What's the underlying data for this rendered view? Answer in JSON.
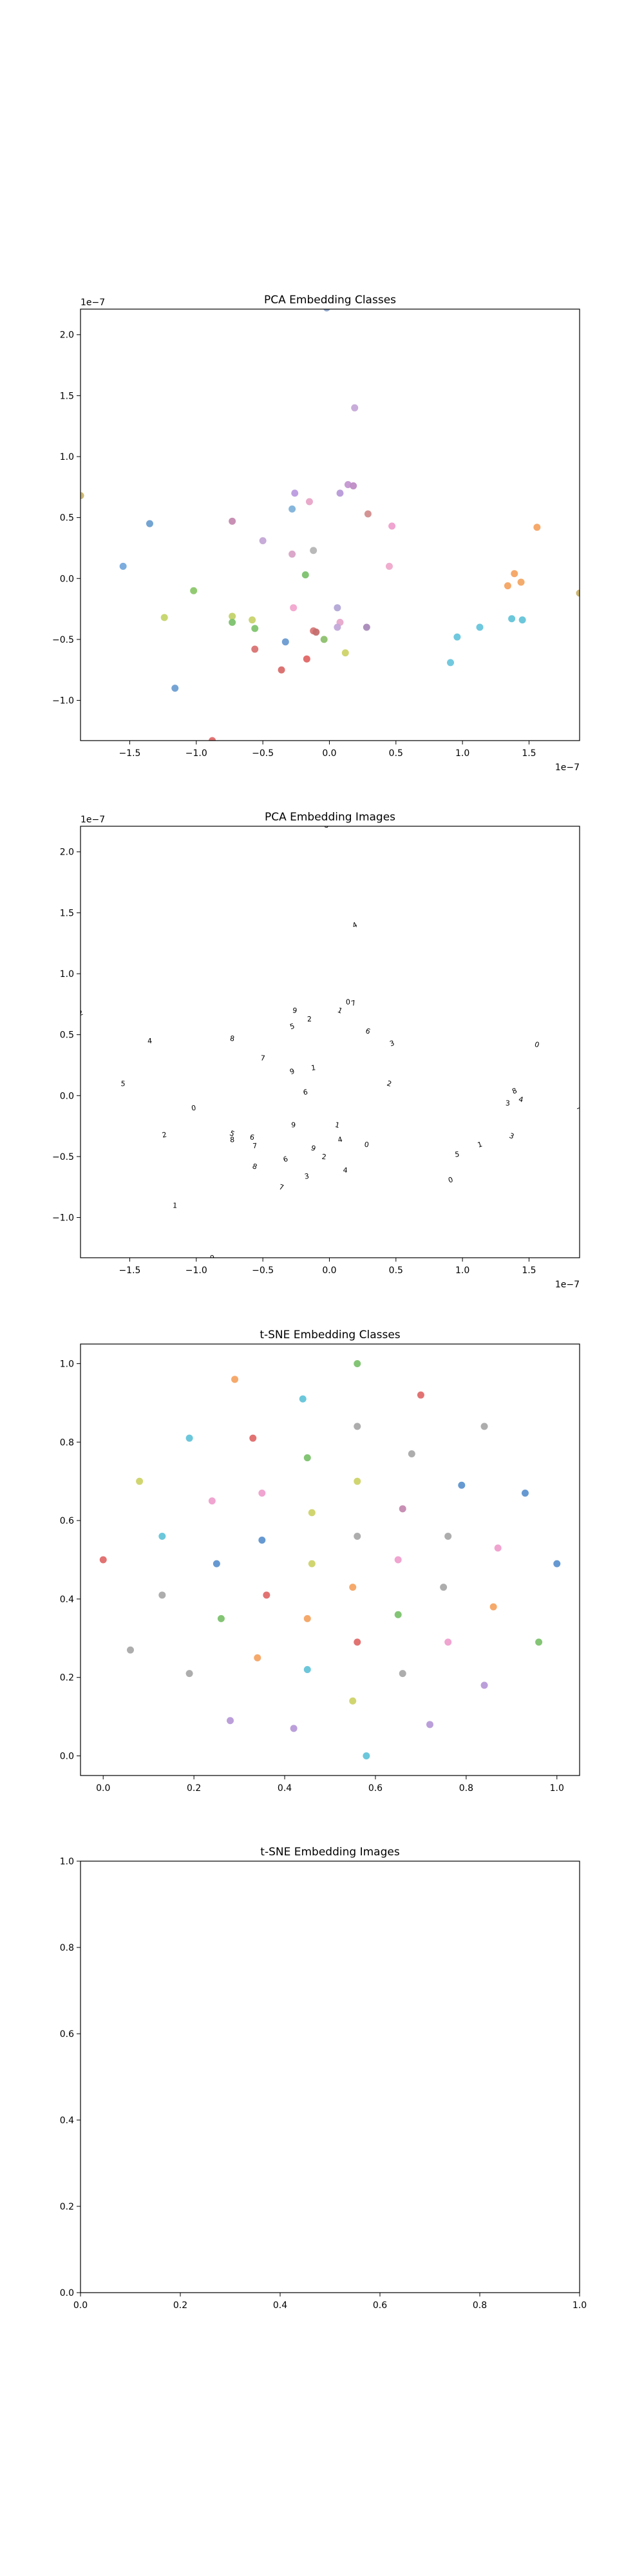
{
  "figure": {
    "background": "#ffffff"
  },
  "chart_data": [
    {
      "id": "pca-classes",
      "type": "scatter",
      "title": "PCA Embedding Classes",
      "xlabel": "",
      "ylabel": "",
      "xlim": [
        -1.87e-07,
        1.88e-07
      ],
      "ylim": [
        -1.33e-07,
        2.21e-07
      ],
      "x_ticks": [
        -1.5e-07,
        -1e-07,
        -5e-08,
        0,
        5e-08,
        1e-07,
        1.5e-07
      ],
      "x_tick_labels": [
        "−1.5",
        "−1.0",
        "−0.5",
        "0.0",
        "0.5",
        "1.0",
        "1.5"
      ],
      "y_ticks": [
        -1e-07,
        -5e-08,
        0,
        5e-08,
        1e-07,
        1.5e-07,
        2e-07
      ],
      "y_tick_labels": [
        "−1.0",
        "−0.5",
        "0.0",
        "0.5",
        "1.0",
        "1.5",
        "2.0"
      ],
      "x_offset_text": "1e−7",
      "y_offset_text": "1e−7",
      "grid": false,
      "marker": "dot",
      "points": [
        {
          "x": 1.9e-08,
          "y": 1.4e-07,
          "color": "#c5a8d8"
        },
        {
          "x": -2e-09,
          "y": 2.22e-07,
          "color": "#8aa0c8"
        },
        {
          "x": 1.4e-08,
          "y": 7.7e-08,
          "color": "#c397d1"
        },
        {
          "x": 1.8e-08,
          "y": 7.6e-08,
          "color": "#bf8cc6"
        },
        {
          "x": 8e-09,
          "y": 7e-08,
          "color": "#b79ad8"
        },
        {
          "x": -2.6e-08,
          "y": 7e-08,
          "color": "#bb9ae0"
        },
        {
          "x": -1.5e-08,
          "y": 6.3e-08,
          "color": "#e8a4c8"
        },
        {
          "x": -2.8e-08,
          "y": 5.7e-08,
          "color": "#7fb2d9"
        },
        {
          "x": 2.9e-08,
          "y": 5.3e-08,
          "color": "#d28e8e"
        },
        {
          "x": -7.3e-08,
          "y": 4.7e-08,
          "color": "#c58ab0"
        },
        {
          "x": -1.35e-07,
          "y": 4.5e-08,
          "color": "#6c9fd0"
        },
        {
          "x": 4.7e-08,
          "y": 4.3e-08,
          "color": "#ef9fce"
        },
        {
          "x": 1.56e-07,
          "y": 4.2e-08,
          "color": "#f4a463"
        },
        {
          "x": -5e-08,
          "y": 3.1e-08,
          "color": "#c4a6d6"
        },
        {
          "x": -1.2e-08,
          "y": 2.3e-08,
          "color": "#b5b5b5"
        },
        {
          "x": -2.8e-08,
          "y": 2e-08,
          "color": "#d9a2c7"
        },
        {
          "x": 4.5e-08,
          "y": 1e-08,
          "color": "#efa9cb"
        },
        {
          "x": -1.55e-07,
          "y": 1e-08,
          "color": "#76a9dc"
        },
        {
          "x": -1.8e-08,
          "y": 3e-09,
          "color": "#7cc26e"
        },
        {
          "x": 1.39e-07,
          "y": 4e-09,
          "color": "#f4a463"
        },
        {
          "x": 1.44e-07,
          "y": -3e-09,
          "color": "#f2a865"
        },
        {
          "x": 1.34e-07,
          "y": -6e-09,
          "color": "#f4a463"
        },
        {
          "x": -1.02e-07,
          "y": -1e-08,
          "color": "#8cc76b"
        },
        {
          "x": 1.88e-07,
          "y": -1.2e-08,
          "color": "#c9b26a"
        },
        {
          "x": 6e-09,
          "y": -2.4e-08,
          "color": "#b3a7d6"
        },
        {
          "x": -2.7e-08,
          "y": -2.4e-08,
          "color": "#f2a7cf"
        },
        {
          "x": -1.24e-07,
          "y": -3.2e-08,
          "color": "#c5d56a"
        },
        {
          "x": -7.3e-08,
          "y": -3.1e-08,
          "color": "#c3d36a"
        },
        {
          "x": -5.8e-08,
          "y": -3.4e-08,
          "color": "#c8d36b"
        },
        {
          "x": -7.3e-08,
          "y": -3.6e-08,
          "color": "#7cc26e"
        },
        {
          "x": 8e-09,
          "y": -3.6e-08,
          "color": "#e7a8cb"
        },
        {
          "x": 1.37e-07,
          "y": -3.3e-08,
          "color": "#64c4d9"
        },
        {
          "x": 1.45e-07,
          "y": -3.4e-08,
          "color": "#64c4d9"
        },
        {
          "x": 6e-09,
          "y": -4e-08,
          "color": "#c2a9d9"
        },
        {
          "x": 2.8e-08,
          "y": -4e-08,
          "color": "#a88ab8"
        },
        {
          "x": -5.6e-08,
          "y": -4.1e-08,
          "color": "#80c46f"
        },
        {
          "x": 1.13e-07,
          "y": -4e-08,
          "color": "#67c5dc"
        },
        {
          "x": -1.2e-08,
          "y": -4.3e-08,
          "color": "#d87878"
        },
        {
          "x": -1e-08,
          "y": -4.4e-08,
          "color": "#c56f6f"
        },
        {
          "x": -4e-09,
          "y": -5e-08,
          "color": "#8dc06d"
        },
        {
          "x": 9.6e-08,
          "y": -4.8e-08,
          "color": "#67c5dc"
        },
        {
          "x": -3.3e-08,
          "y": -5.2e-08,
          "color": "#6a9bd0"
        },
        {
          "x": -5.6e-08,
          "y": -5.8e-08,
          "color": "#d97373"
        },
        {
          "x": 1.2e-08,
          "y": -6.1e-08,
          "color": "#cdd368"
        },
        {
          "x": -1.7e-08,
          "y": -6.6e-08,
          "color": "#e06666"
        },
        {
          "x": 9.1e-08,
          "y": -6.9e-08,
          "color": "#6ac6dc"
        },
        {
          "x": -3.6e-08,
          "y": -7.5e-08,
          "color": "#d96c6c"
        },
        {
          "x": -1.16e-07,
          "y": -9e-08,
          "color": "#6e9fd2"
        },
        {
          "x": -8.8e-08,
          "y": -1.33e-07,
          "color": "#e06b6b"
        },
        {
          "x": -1.87e-07,
          "y": 6.8e-08,
          "color": "#c9b26a"
        }
      ]
    },
    {
      "id": "pca-images",
      "type": "scatter",
      "title": "PCA Embedding Images",
      "xlabel": "",
      "ylabel": "",
      "xlim": [
        -1.87e-07,
        1.88e-07
      ],
      "ylim": [
        -1.33e-07,
        2.21e-07
      ],
      "x_ticks": [
        -1.5e-07,
        -1e-07,
        -5e-08,
        0,
        5e-08,
        1e-07,
        1.5e-07
      ],
      "x_tick_labels": [
        "−1.5",
        "−1.0",
        "−0.5",
        "0.0",
        "0.5",
        "1.0",
        "1.5"
      ],
      "y_ticks": [
        -1e-07,
        -5e-08,
        0,
        5e-08,
        1e-07,
        1.5e-07,
        2e-07
      ],
      "y_tick_labels": [
        "−1.0",
        "−0.5",
        "0.0",
        "0.5",
        "1.0",
        "1.5",
        "2.0"
      ],
      "x_offset_text": "1e−7",
      "y_offset_text": "1e−7",
      "grid": false,
      "marker": "image-thumbnail",
      "glyphs": [
        "4",
        "3",
        "0",
        "7",
        "1",
        "9",
        "2",
        "5",
        "6",
        "8"
      ],
      "points": [
        {
          "x": 1.9e-08,
          "y": 1.4e-07
        },
        {
          "x": -2e-09,
          "y": 2.22e-07
        },
        {
          "x": 1.4e-08,
          "y": 7.7e-08
        },
        {
          "x": 1.8e-08,
          "y": 7.6e-08
        },
        {
          "x": 8e-09,
          "y": 7e-08
        },
        {
          "x": -2.6e-08,
          "y": 7e-08
        },
        {
          "x": -1.5e-08,
          "y": 6.3e-08
        },
        {
          "x": -2.8e-08,
          "y": 5.7e-08
        },
        {
          "x": 2.9e-08,
          "y": 5.3e-08
        },
        {
          "x": -7.3e-08,
          "y": 4.7e-08
        },
        {
          "x": -1.35e-07,
          "y": 4.5e-08
        },
        {
          "x": 4.7e-08,
          "y": 4.3e-08
        },
        {
          "x": 1.56e-07,
          "y": 4.2e-08
        },
        {
          "x": -5e-08,
          "y": 3.1e-08
        },
        {
          "x": -1.2e-08,
          "y": 2.3e-08
        },
        {
          "x": -2.8e-08,
          "y": 2e-08
        },
        {
          "x": 4.5e-08,
          "y": 1e-08
        },
        {
          "x": -1.55e-07,
          "y": 1e-08
        },
        {
          "x": -1.8e-08,
          "y": 3e-09
        },
        {
          "x": 1.39e-07,
          "y": 4e-09
        },
        {
          "x": 1.44e-07,
          "y": -3e-09
        },
        {
          "x": 1.34e-07,
          "y": -6e-09
        },
        {
          "x": -1.02e-07,
          "y": -1e-08
        },
        {
          "x": 1.88e-07,
          "y": -1.2e-08
        },
        {
          "x": 6e-09,
          "y": -2.4e-08
        },
        {
          "x": -2.7e-08,
          "y": -2.4e-08
        },
        {
          "x": -1.24e-07,
          "y": -3.2e-08
        },
        {
          "x": -7.3e-08,
          "y": -3.1e-08
        },
        {
          "x": -5.8e-08,
          "y": -3.4e-08
        },
        {
          "x": -7.3e-08,
          "y": -3.6e-08
        },
        {
          "x": 8e-09,
          "y": -3.6e-08
        },
        {
          "x": 1.37e-07,
          "y": -3.3e-08
        },
        {
          "x": 2.8e-08,
          "y": -4e-08
        },
        {
          "x": -5.6e-08,
          "y": -4.1e-08
        },
        {
          "x": 1.13e-07,
          "y": -4e-08
        },
        {
          "x": -1.2e-08,
          "y": -4.3e-08
        },
        {
          "x": -4e-09,
          "y": -5e-08
        },
        {
          "x": 9.6e-08,
          "y": -4.8e-08
        },
        {
          "x": -3.3e-08,
          "y": -5.2e-08
        },
        {
          "x": -5.6e-08,
          "y": -5.8e-08
        },
        {
          "x": 1.2e-08,
          "y": -6.1e-08
        },
        {
          "x": -1.7e-08,
          "y": -6.6e-08
        },
        {
          "x": 9.1e-08,
          "y": -6.9e-08
        },
        {
          "x": -3.6e-08,
          "y": -7.5e-08
        },
        {
          "x": -1.16e-07,
          "y": -9e-08
        },
        {
          "x": -8.8e-08,
          "y": -1.33e-07
        },
        {
          "x": -1.87e-07,
          "y": 6.8e-08
        }
      ]
    },
    {
      "id": "tsne-classes",
      "type": "scatter",
      "title": "t-SNE Embedding Classes",
      "xlabel": "",
      "ylabel": "",
      "xlim": [
        -0.05,
        1.05
      ],
      "ylim": [
        -0.05,
        1.05
      ],
      "x_ticks": [
        0,
        0.2,
        0.4,
        0.6,
        0.8,
        1.0
      ],
      "x_tick_labels": [
        "0.0",
        "0.2",
        "0.4",
        "0.6",
        "0.8",
        "1.0"
      ],
      "y_ticks": [
        0,
        0.2,
        0.4,
        0.6,
        0.8,
        1.0
      ],
      "y_tick_labels": [
        "0.0",
        "0.2",
        "0.4",
        "0.6",
        "0.8",
        "1.0"
      ],
      "grid": false,
      "marker": "dot",
      "points": [
        {
          "x": 0.56,
          "y": 1.0,
          "color": "#7cc26e"
        },
        {
          "x": 0.29,
          "y": 0.96,
          "color": "#f4a463"
        },
        {
          "x": 0.7,
          "y": 0.92,
          "color": "#e06b6b"
        },
        {
          "x": 0.44,
          "y": 0.91,
          "color": "#64c4d9"
        },
        {
          "x": 0.56,
          "y": 0.84,
          "color": "#a9a9a9"
        },
        {
          "x": 0.84,
          "y": 0.84,
          "color": "#a9a9a9"
        },
        {
          "x": 0.19,
          "y": 0.81,
          "color": "#64c4d9"
        },
        {
          "x": 0.33,
          "y": 0.81,
          "color": "#e06b6b"
        },
        {
          "x": 0.68,
          "y": 0.77,
          "color": "#a9a9a9"
        },
        {
          "x": 0.45,
          "y": 0.76,
          "color": "#7cc26e"
        },
        {
          "x": 0.08,
          "y": 0.7,
          "color": "#cdd368"
        },
        {
          "x": 0.56,
          "y": 0.7,
          "color": "#cdd368"
        },
        {
          "x": 0.79,
          "y": 0.69,
          "color": "#5e93cf"
        },
        {
          "x": 0.35,
          "y": 0.67,
          "color": "#ef9fce"
        },
        {
          "x": 0.93,
          "y": 0.67,
          "color": "#5e93cf"
        },
        {
          "x": 0.24,
          "y": 0.65,
          "color": "#ef9fce"
        },
        {
          "x": 0.66,
          "y": 0.63,
          "color": "#c58ab0"
        },
        {
          "x": 0.46,
          "y": 0.62,
          "color": "#cdd368"
        },
        {
          "x": 0.13,
          "y": 0.56,
          "color": "#64c4d9"
        },
        {
          "x": 0.35,
          "y": 0.55,
          "color": "#5e93cf"
        },
        {
          "x": 0.56,
          "y": 0.56,
          "color": "#a9a9a9"
        },
        {
          "x": 0.76,
          "y": 0.56,
          "color": "#a9a9a9"
        },
        {
          "x": 0.87,
          "y": 0.53,
          "color": "#ef9fce"
        },
        {
          "x": 0.0,
          "y": 0.5,
          "color": "#e06b6b"
        },
        {
          "x": 0.25,
          "y": 0.49,
          "color": "#5e93cf"
        },
        {
          "x": 0.46,
          "y": 0.49,
          "color": "#cdd368"
        },
        {
          "x": 0.65,
          "y": 0.5,
          "color": "#ef9fce"
        },
        {
          "x": 1.0,
          "y": 0.49,
          "color": "#5e93cf"
        },
        {
          "x": 0.55,
          "y": 0.43,
          "color": "#f4a463"
        },
        {
          "x": 0.75,
          "y": 0.43,
          "color": "#a9a9a9"
        },
        {
          "x": 0.13,
          "y": 0.41,
          "color": "#a9a9a9"
        },
        {
          "x": 0.36,
          "y": 0.41,
          "color": "#e06b6b"
        },
        {
          "x": 0.86,
          "y": 0.38,
          "color": "#f4a463"
        },
        {
          "x": 0.65,
          "y": 0.36,
          "color": "#7cc26e"
        },
        {
          "x": 0.26,
          "y": 0.35,
          "color": "#7cc26e"
        },
        {
          "x": 0.45,
          "y": 0.35,
          "color": "#f4a463"
        },
        {
          "x": 0.56,
          "y": 0.29,
          "color": "#e06b6b"
        },
        {
          "x": 0.76,
          "y": 0.29,
          "color": "#ef9fce"
        },
        {
          "x": 0.96,
          "y": 0.29,
          "color": "#7cc26e"
        },
        {
          "x": 0.06,
          "y": 0.27,
          "color": "#a9a9a9"
        },
        {
          "x": 0.34,
          "y": 0.25,
          "color": "#f4a463"
        },
        {
          "x": 0.19,
          "y": 0.21,
          "color": "#a9a9a9"
        },
        {
          "x": 0.45,
          "y": 0.22,
          "color": "#64c4d9"
        },
        {
          "x": 0.66,
          "y": 0.21,
          "color": "#a9a9a9"
        },
        {
          "x": 0.84,
          "y": 0.18,
          "color": "#b79ad8"
        },
        {
          "x": 0.55,
          "y": 0.14,
          "color": "#cdd368"
        },
        {
          "x": 0.28,
          "y": 0.09,
          "color": "#b79ad8"
        },
        {
          "x": 0.42,
          "y": 0.07,
          "color": "#b79ad8"
        },
        {
          "x": 0.72,
          "y": 0.08,
          "color": "#b79ad8"
        },
        {
          "x": 0.58,
          "y": 0.0,
          "color": "#64c4d9"
        }
      ]
    },
    {
      "id": "tsne-images",
      "type": "scatter",
      "title": "t-SNE Embedding Images",
      "xlabel": "",
      "ylabel": "",
      "xlim": [
        0,
        1
      ],
      "ylim": [
        0,
        1
      ],
      "x_ticks": [
        0,
        0.2,
        0.4,
        0.6,
        0.8,
        1.0
      ],
      "x_tick_labels": [
        "0.0",
        "0.2",
        "0.4",
        "0.6",
        "0.8",
        "1.0"
      ],
      "y_ticks": [
        0,
        0.2,
        0.4,
        0.6,
        0.8,
        1.0
      ],
      "y_tick_labels": [
        "0.0",
        "0.2",
        "0.4",
        "0.6",
        "0.8",
        "1.0"
      ],
      "grid": false,
      "marker": "none",
      "points": []
    }
  ]
}
